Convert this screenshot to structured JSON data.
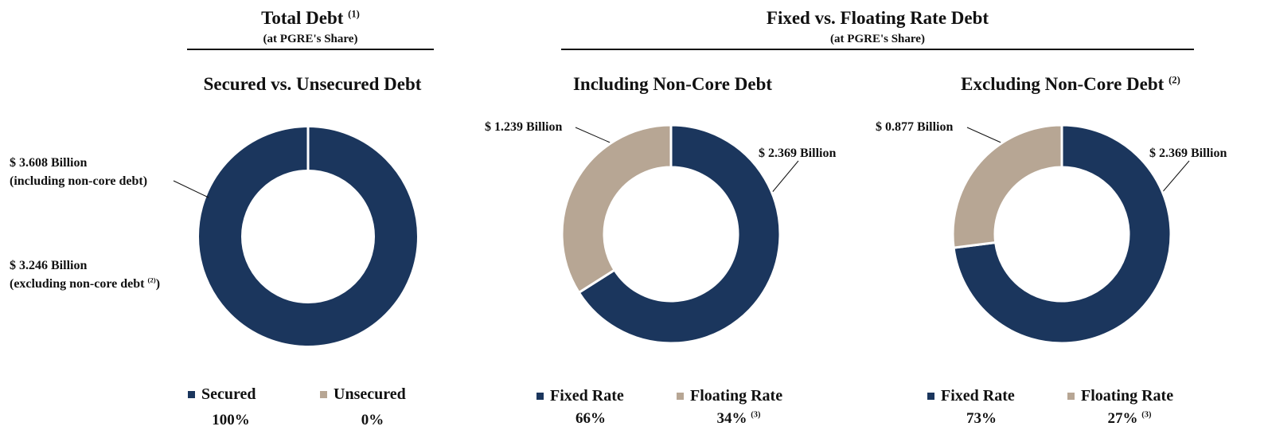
{
  "colors": {
    "navy": "#1b365d",
    "tan": "#b7a694",
    "text": "#111111"
  },
  "headers": {
    "total_debt": {
      "title": "Total Debt",
      "note": "(1)",
      "subtitle": "(at PGRE's Share)"
    },
    "fixed_floating": {
      "title": "Fixed vs. Floating Rate Debt",
      "subtitle": "(at PGRE's Share)"
    }
  },
  "chart_data": [
    {
      "type": "pie",
      "donut": true,
      "title": "Secured vs. Unsecured Debt",
      "title_note": "",
      "categories": [
        "Secured",
        "Unsecured"
      ],
      "values": [
        100,
        0
      ],
      "percent_labels": [
        "100%",
        "0%"
      ],
      "percent_notes": [
        "",
        ""
      ],
      "colors": [
        "#1b365d",
        "#b7a694"
      ],
      "annotations": [
        {
          "line1": "$ 3.608 Billion",
          "line2": "(including non-core debt)",
          "note": ""
        },
        {
          "line1": "$ 3.246 Billion",
          "line2": "(excluding non-core debt",
          "note": "(2)",
          "suffix": ")"
        }
      ],
      "legend": "bottom"
    },
    {
      "type": "pie",
      "donut": true,
      "title": "Including Non-Core Debt",
      "title_note": "",
      "categories": [
        "Fixed Rate",
        "Floating Rate"
      ],
      "values": [
        66,
        34
      ],
      "percent_labels": [
        "66%",
        "34%"
      ],
      "percent_notes": [
        "",
        "(3)"
      ],
      "colors": [
        "#1b365d",
        "#b7a694"
      ],
      "value_labels": [
        "$ 2.369 Billion",
        "$ 1.239 Billion"
      ],
      "legend": "bottom"
    },
    {
      "type": "pie",
      "donut": true,
      "title": "Excluding Non-Core Debt",
      "title_note": "(2)",
      "categories": [
        "Fixed Rate",
        "Floating Rate"
      ],
      "values": [
        73,
        27
      ],
      "percent_labels": [
        "73%",
        "27%"
      ],
      "percent_notes": [
        "",
        "(3)"
      ],
      "colors": [
        "#1b365d",
        "#b7a694"
      ],
      "value_labels": [
        "$ 2.369 Billion",
        "$ 0.877 Billion"
      ],
      "legend": "bottom"
    }
  ]
}
